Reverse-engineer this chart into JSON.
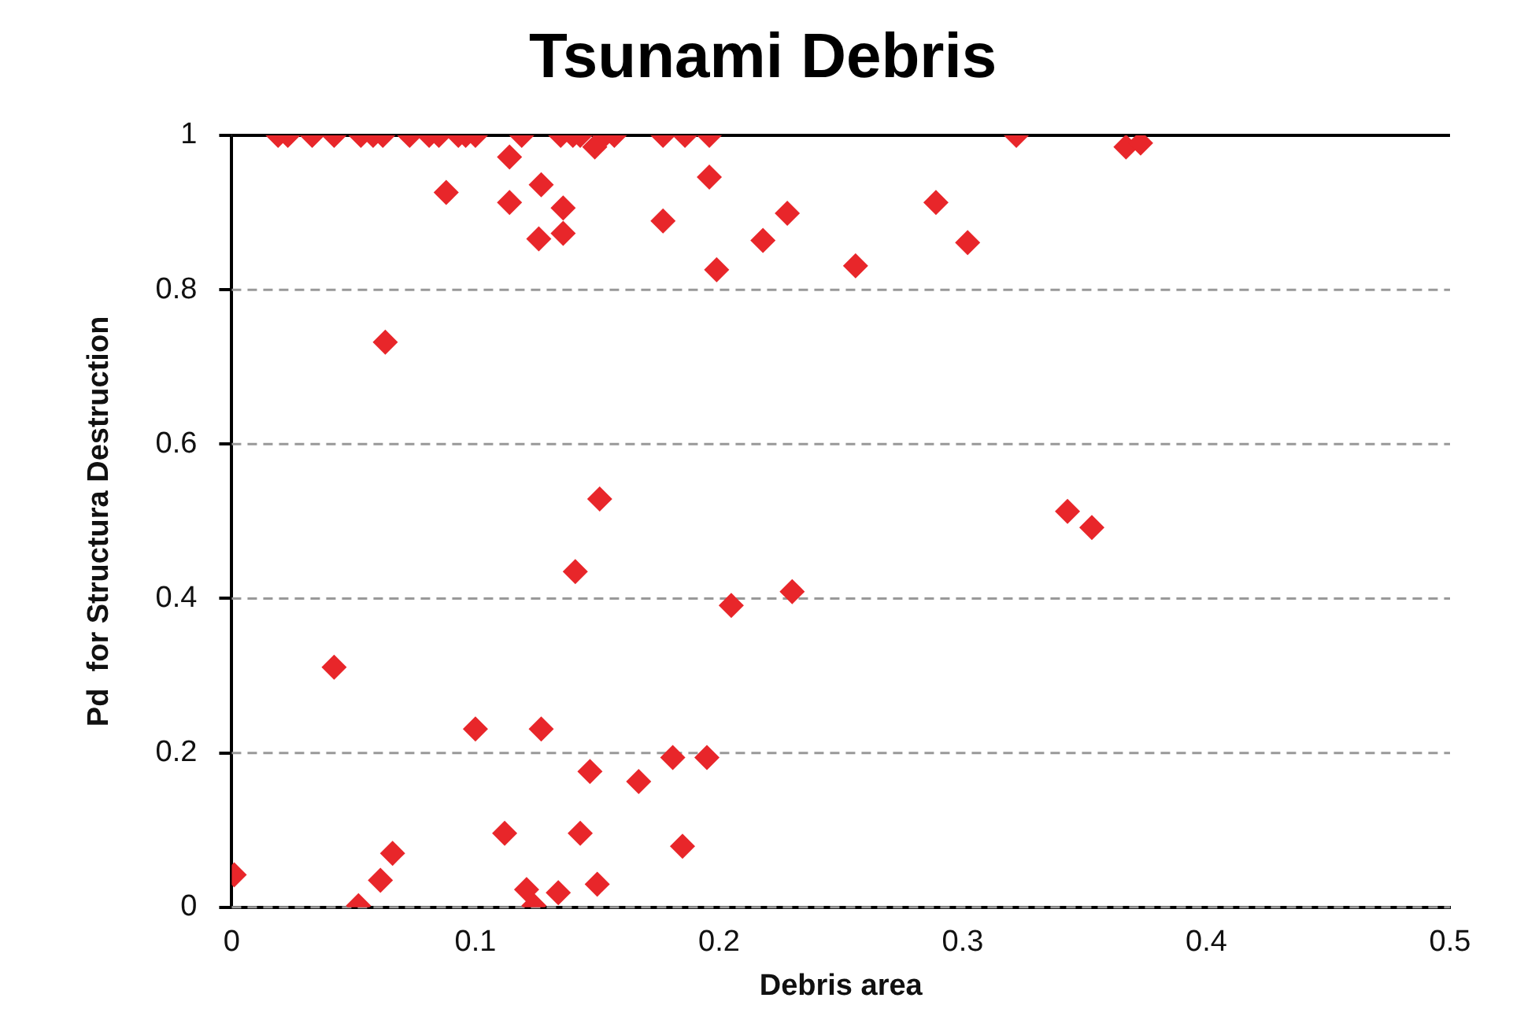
{
  "chart_data": {
    "type": "scatter",
    "title": "Tsunami Debris",
    "xlabel": "Debris area",
    "ylabel": "Pd  for Structura Destruction",
    "x": [
      0.019,
      0.023,
      0.033,
      0.042,
      0.053,
      0.058,
      0.062,
      0.073,
      0.081,
      0.085,
      0.093,
      0.096,
      0.1,
      0.119,
      0.135,
      0.14,
      0.143,
      0.149,
      0.153,
      0.157,
      0.177,
      0.186,
      0.196,
      0.322,
      0.367,
      0.373,
      0.088,
      0.114,
      0.114,
      0.127,
      0.126,
      0.136,
      0.136,
      0.177,
      0.196,
      0.199,
      0.218,
      0.228,
      0.256,
      0.289,
      0.302,
      0.063,
      0.151,
      0.141,
      0.042,
      0.1,
      0.127,
      0.147,
      0.112,
      0.143,
      0.001,
      0.052,
      0.061,
      0.066,
      0.121,
      0.124,
      0.134,
      0.15,
      0.167,
      0.181,
      0.195,
      0.185,
      0.205,
      0.23,
      0.343,
      0.353
    ],
    "values": [
      1,
      1,
      1,
      1,
      1,
      1,
      1,
      1,
      1,
      1,
      1,
      1,
      1,
      1,
      1,
      1,
      1,
      0.985,
      1,
      1,
      1,
      1,
      1,
      1,
      0.985,
      0.99,
      0.926,
      0.972,
      0.913,
      0.936,
      0.866,
      0.906,
      0.873,
      0.889,
      0.946,
      0.826,
      0.864,
      0.899,
      0.831,
      0.913,
      0.861,
      0.732,
      0.529,
      0.435,
      0.311,
      0.231,
      0.231,
      0.176,
      0.096,
      0.096,
      0.042,
      0.002,
      0.035,
      0.07,
      0.023,
      0.002,
      0.019,
      0.03,
      0.163,
      0.194,
      0.194,
      0.079,
      0.391,
      0.409,
      0.513,
      0.492
    ],
    "color": "#e8262a",
    "marker": "diamond",
    "grid": "y",
    "line_style": "dashed",
    "xlim": [
      0,
      0.5
    ],
    "xticks": [
      0,
      0.1,
      0.2,
      0.3,
      0.4,
      0.5
    ],
    "ylim": [
      0,
      1
    ],
    "yticks": [
      0,
      0.2,
      0.4,
      0.6,
      0.8,
      1
    ]
  }
}
